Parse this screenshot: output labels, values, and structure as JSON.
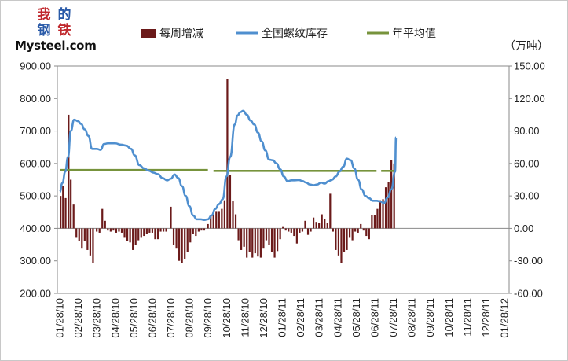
{
  "logo": {
    "chars": [
      "我",
      "的",
      "钢",
      "铁"
    ],
    "char_colors": [
      "#c0282d",
      "#2a5aa8",
      "#2a5aa8",
      "#c0282d"
    ],
    "wordmark_lead": "My",
    "wordmark_tail": "steel.com",
    "wordmark_dot_color": "#c0282d"
  },
  "chart_data": {
    "type": "bar+line",
    "unit_right": "（万吨）",
    "legend": [
      {
        "label": "每周增减",
        "color": "#6b1a1a",
        "kind": "bar"
      },
      {
        "label": "全国螺纹库存",
        "color": "#4f8fcf",
        "kind": "line"
      },
      {
        "label": "年平均值",
        "color": "#77933c",
        "kind": "dashed-line"
      }
    ],
    "left_axis": {
      "min": 200,
      "max": 900,
      "step": 100,
      "ticks": [
        "200.00",
        "300.00",
        "400.00",
        "500.00",
        "600.00",
        "700.00",
        "800.00",
        "900.00"
      ]
    },
    "right_axis": {
      "min": -60,
      "max": 150,
      "step": 30,
      "ticks": [
        "-60.00",
        "-30.00",
        "0.00",
        "30.00",
        "60.00",
        "90.00",
        "120.00",
        "150.00"
      ]
    },
    "x_labels": [
      "01/28/10",
      "02/28/10",
      "03/28/10",
      "04/28/10",
      "05/28/10",
      "06/28/10",
      "07/28/10",
      "08/28/10",
      "09/28/10",
      "10/28/10",
      "11/28/10",
      "12/28/10",
      "01/28/11",
      "02/28/11",
      "03/28/11",
      "04/28/11",
      "05/28/11",
      "06/28/11",
      "07/28/11",
      "08/28/11",
      "09/28/11",
      "10/28/11",
      "11/28/11",
      "12/28/11",
      "01/28/12"
    ],
    "inventory": [
      [
        0,
        512
      ],
      [
        0.15,
        540
      ],
      [
        0.3,
        575
      ],
      [
        0.45,
        620
      ],
      [
        0.6,
        700
      ],
      [
        0.78,
        735
      ],
      [
        1.0,
        730
      ],
      [
        1.15,
        722
      ],
      [
        1.35,
        705
      ],
      [
        1.55,
        685
      ],
      [
        1.75,
        645
      ],
      [
        2.0,
        645
      ],
      [
        2.2,
        642
      ],
      [
        2.4,
        660
      ],
      [
        2.6,
        662
      ],
      [
        2.8,
        662
      ],
      [
        3.0,
        662
      ],
      [
        3.3,
        658
      ],
      [
        3.6,
        655
      ],
      [
        3.85,
        645
      ],
      [
        4.05,
        625
      ],
      [
        4.3,
        595
      ],
      [
        4.55,
        585
      ],
      [
        4.8,
        578
      ],
      [
        5.05,
        572
      ],
      [
        5.3,
        567
      ],
      [
        5.55,
        555
      ],
      [
        5.8,
        548
      ],
      [
        6.0,
        553
      ],
      [
        6.2,
        566
      ],
      [
        6.4,
        555
      ],
      [
        6.6,
        530
      ],
      [
        6.8,
        500
      ],
      [
        7.0,
        468
      ],
      [
        7.2,
        440
      ],
      [
        7.4,
        428
      ],
      [
        7.6,
        428
      ],
      [
        7.8,
        426
      ],
      [
        8.0,
        428
      ],
      [
        8.2,
        440
      ],
      [
        8.4,
        460
      ],
      [
        8.6,
        475
      ],
      [
        8.8,
        490
      ],
      [
        9.0,
        560
      ],
      [
        9.2,
        620
      ],
      [
        9.45,
        720
      ],
      [
        9.6,
        748
      ],
      [
        9.75,
        758
      ],
      [
        9.9,
        762
      ],
      [
        10.1,
        750
      ],
      [
        10.3,
        732
      ],
      [
        10.5,
        720
      ],
      [
        10.7,
        695
      ],
      [
        10.9,
        668
      ],
      [
        11.1,
        640
      ],
      [
        11.3,
        612
      ],
      [
        11.5,
        610
      ],
      [
        11.7,
        600
      ],
      [
        11.9,
        582
      ],
      [
        12.1,
        560
      ],
      [
        12.3,
        545
      ],
      [
        12.5,
        548
      ],
      [
        12.7,
        548
      ],
      [
        12.9,
        549
      ],
      [
        13.1,
        546
      ],
      [
        13.3,
        541
      ],
      [
        13.5,
        535
      ],
      [
        13.7,
        533
      ],
      [
        13.9,
        535
      ],
      [
        14.1,
        541
      ],
      [
        14.3,
        538
      ],
      [
        14.5,
        545
      ],
      [
        14.7,
        550
      ],
      [
        14.9,
        560
      ],
      [
        15.1,
        575
      ],
      [
        15.3,
        590
      ],
      [
        15.5,
        615
      ],
      [
        15.7,
        610
      ],
      [
        15.9,
        585
      ],
      [
        16.1,
        550
      ],
      [
        16.3,
        520
      ],
      [
        16.5,
        500
      ],
      [
        16.7,
        493
      ],
      [
        16.9,
        485
      ],
      [
        17.1,
        485
      ],
      [
        17.3,
        483
      ],
      [
        17.5,
        478
      ],
      [
        17.7,
        495
      ],
      [
        17.9,
        520
      ],
      [
        18.1,
        575
      ],
      [
        18.15,
        680
      ]
    ],
    "annual_avg": [
      {
        "from": 0,
        "to": 8.0,
        "value": 580
      },
      {
        "from": 8.3,
        "to": 17.1,
        "value": 577
      },
      {
        "from": 17.35,
        "to": 18.15,
        "value": 577
      }
    ],
    "weekly_change": [
      [
        0.05,
        30
      ],
      [
        0.18,
        39
      ],
      [
        0.32,
        28
      ],
      [
        0.48,
        105
      ],
      [
        0.6,
        45
      ],
      [
        0.75,
        22
      ],
      [
        0.9,
        -8
      ],
      [
        1.05,
        -12
      ],
      [
        1.2,
        -18
      ],
      [
        1.35,
        -12
      ],
      [
        1.5,
        -20
      ],
      [
        1.65,
        -25
      ],
      [
        1.8,
        -32
      ],
      [
        2.0,
        -3
      ],
      [
        2.15,
        -4
      ],
      [
        2.3,
        18
      ],
      [
        2.45,
        7
      ],
      [
        2.6,
        -2
      ],
      [
        2.75,
        -3
      ],
      [
        2.9,
        -2
      ],
      [
        3.05,
        -4
      ],
      [
        3.2,
        -3
      ],
      [
        3.35,
        -4
      ],
      [
        3.5,
        -8
      ],
      [
        3.65,
        -12
      ],
      [
        3.8,
        -13
      ],
      [
        3.95,
        -20
      ],
      [
        4.1,
        -15
      ],
      [
        4.25,
        -11
      ],
      [
        4.4,
        -8
      ],
      [
        4.55,
        -7
      ],
      [
        4.7,
        -5
      ],
      [
        4.85,
        -4
      ],
      [
        5.0,
        -4
      ],
      [
        5.15,
        -10
      ],
      [
        5.3,
        -10
      ],
      [
        5.45,
        -3
      ],
      [
        5.6,
        -3
      ],
      [
        5.75,
        -3
      ],
      [
        6.0,
        20
      ],
      [
        6.15,
        -15
      ],
      [
        6.3,
        -18
      ],
      [
        6.45,
        -30
      ],
      [
        6.6,
        -32
      ],
      [
        6.75,
        -28
      ],
      [
        6.9,
        -22
      ],
      [
        7.05,
        -13
      ],
      [
        7.2,
        -5
      ],
      [
        7.35,
        -7
      ],
      [
        7.5,
        -3
      ],
      [
        7.65,
        -2
      ],
      [
        7.8,
        -2
      ],
      [
        8.0,
        4
      ],
      [
        8.15,
        12
      ],
      [
        8.3,
        15
      ],
      [
        8.45,
        16
      ],
      [
        8.6,
        16
      ],
      [
        8.75,
        18
      ],
      [
        8.9,
        26
      ],
      [
        9.05,
        138
      ],
      [
        9.2,
        49
      ],
      [
        9.35,
        25
      ],
      [
        9.5,
        13
      ],
      [
        9.65,
        -11
      ],
      [
        9.8,
        -20
      ],
      [
        9.95,
        -17
      ],
      [
        10.1,
        -27
      ],
      [
        10.25,
        -22
      ],
      [
        10.4,
        -27
      ],
      [
        10.55,
        -23
      ],
      [
        10.7,
        -26
      ],
      [
        10.85,
        -27
      ],
      [
        11.0,
        -18
      ],
      [
        11.15,
        -11
      ],
      [
        11.3,
        -15
      ],
      [
        11.45,
        -22
      ],
      [
        11.6,
        -27
      ],
      [
        11.75,
        -21
      ],
      [
        11.9,
        -10
      ],
      [
        12.05,
        2
      ],
      [
        12.2,
        -2
      ],
      [
        12.35,
        -3
      ],
      [
        12.5,
        -4
      ],
      [
        12.65,
        -7
      ],
      [
        12.8,
        -14
      ],
      [
        12.95,
        -4
      ],
      [
        13.1,
        -3
      ],
      [
        13.25,
        7
      ],
      [
        13.4,
        -6
      ],
      [
        13.55,
        -3
      ],
      [
        13.7,
        10
      ],
      [
        13.85,
        6
      ],
      [
        14.0,
        5
      ],
      [
        14.15,
        13
      ],
      [
        14.3,
        9
      ],
      [
        14.45,
        5
      ],
      [
        14.6,
        32
      ],
      [
        14.75,
        -3
      ],
      [
        14.9,
        -20
      ],
      [
        15.05,
        -25
      ],
      [
        15.2,
        -32
      ],
      [
        15.35,
        -22
      ],
      [
        15.5,
        -20
      ],
      [
        15.65,
        -8
      ],
      [
        15.8,
        -11
      ],
      [
        15.95,
        -3
      ],
      [
        16.1,
        -4
      ],
      [
        16.25,
        4
      ],
      [
        16.4,
        -2
      ],
      [
        16.55,
        -7
      ],
      [
        16.7,
        -10
      ],
      [
        16.85,
        12
      ],
      [
        17.0,
        12
      ],
      [
        17.15,
        18
      ],
      [
        17.3,
        26
      ],
      [
        17.45,
        27
      ],
      [
        17.6,
        38
      ],
      [
        17.75,
        43
      ],
      [
        17.9,
        63
      ],
      [
        18.05,
        60
      ]
    ]
  }
}
